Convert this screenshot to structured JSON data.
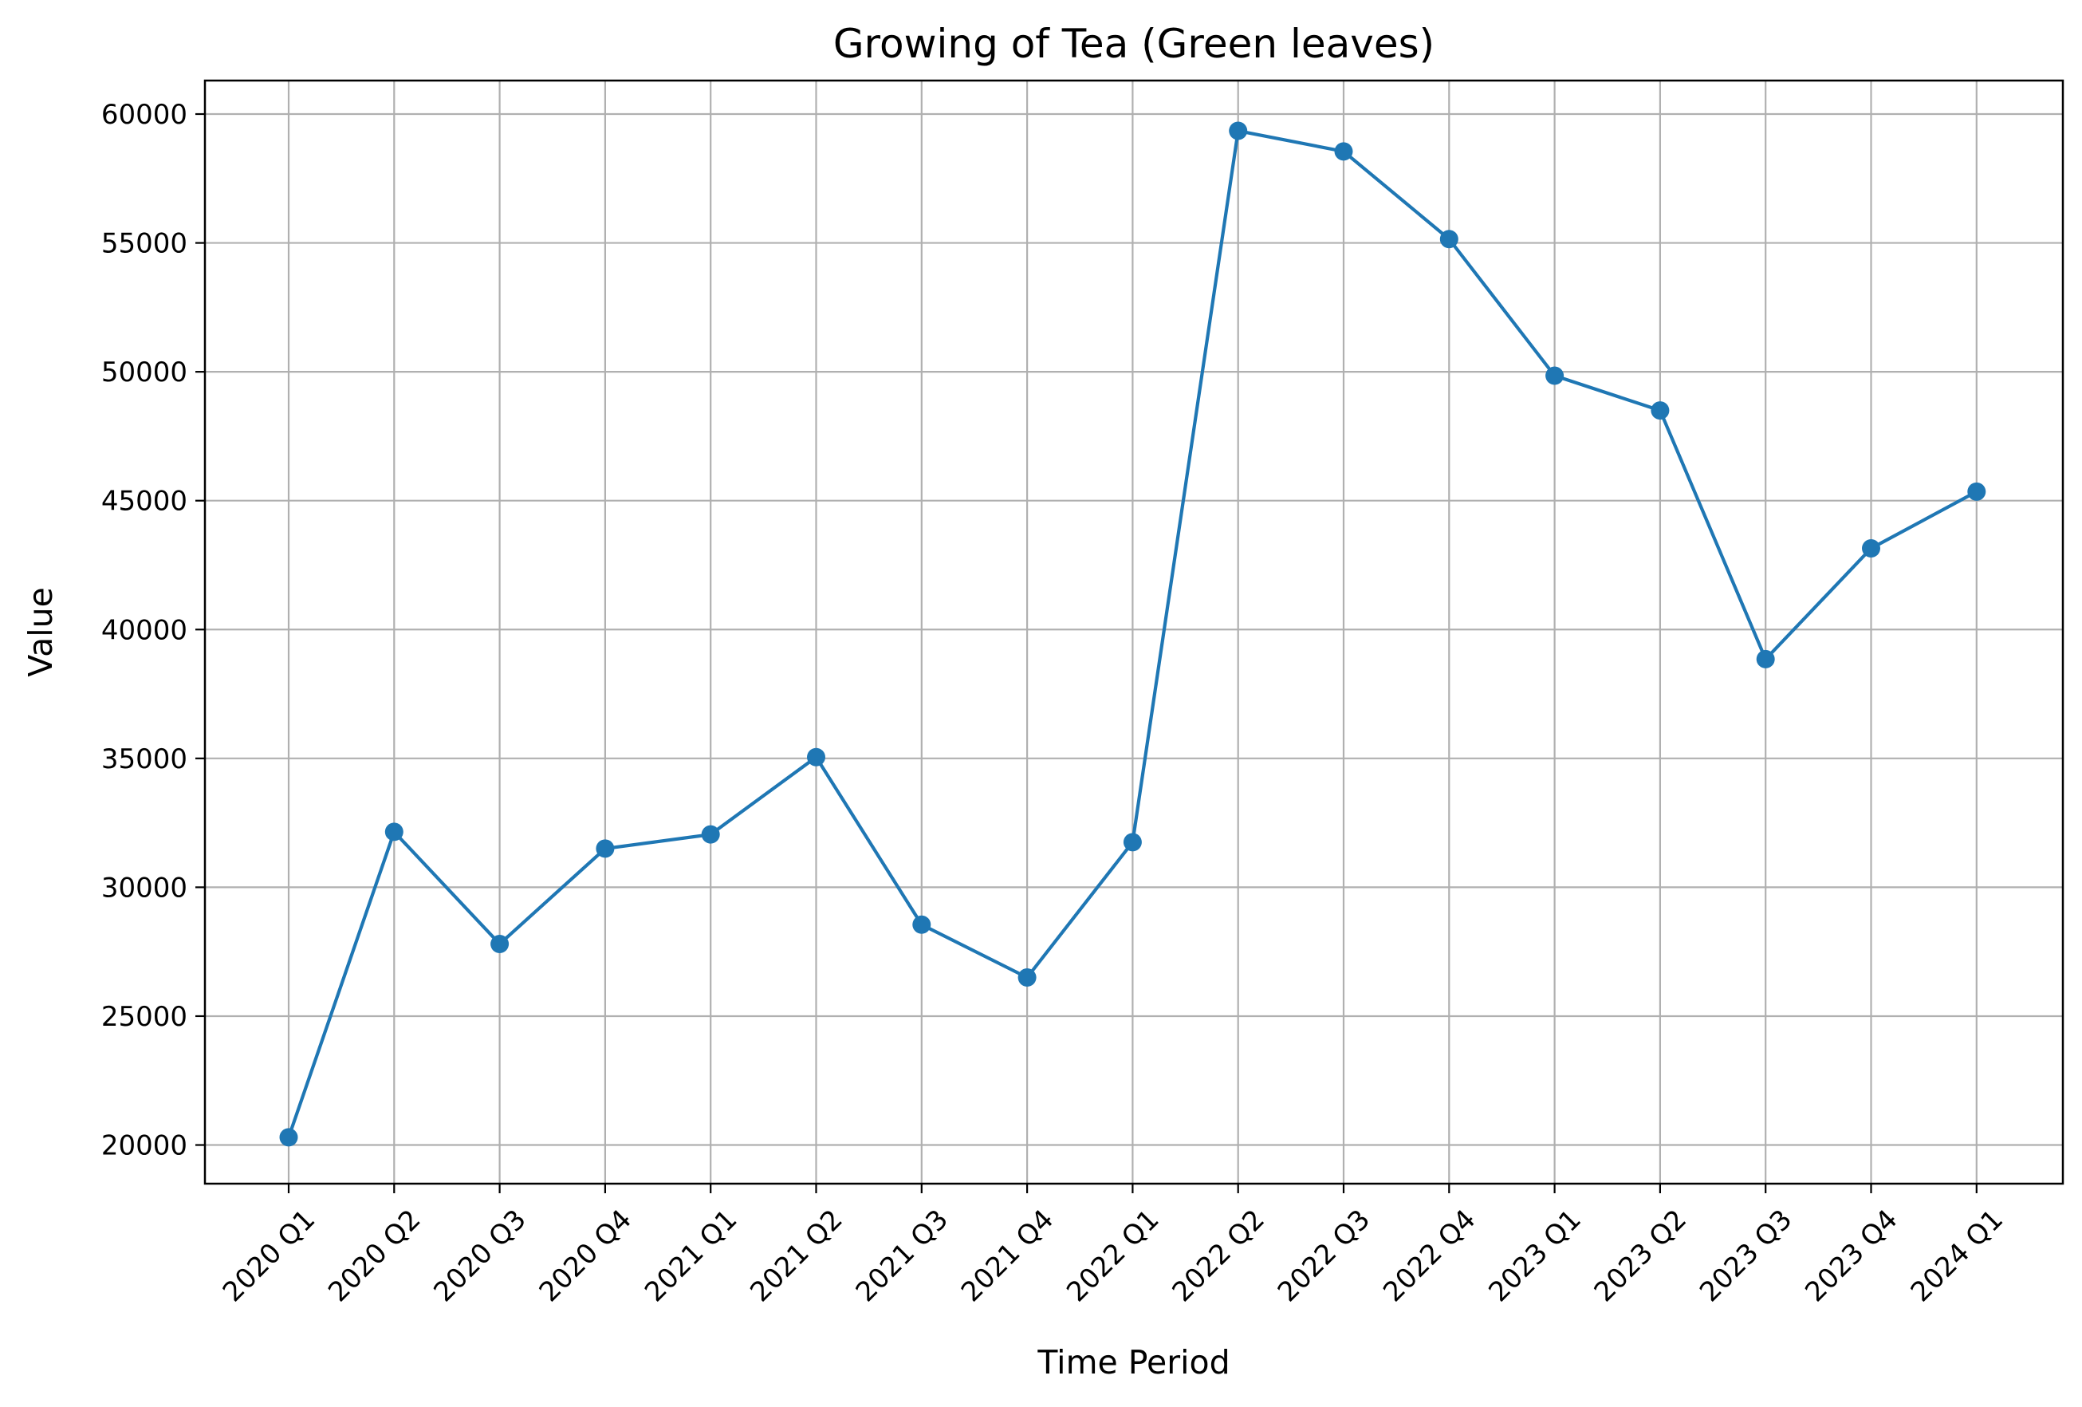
{
  "chart_data": {
    "type": "line",
    "title": "Growing of Tea (Green leaves)",
    "xlabel": "Time Period",
    "ylabel": "Value",
    "categories": [
      "2020 Q1",
      "2020 Q2",
      "2020 Q3",
      "2020 Q4",
      "2021 Q1",
      "2021 Q2",
      "2021 Q3",
      "2021 Q4",
      "2022 Q1",
      "2022 Q2",
      "2022 Q3",
      "2022 Q4",
      "2023 Q1",
      "2023 Q2",
      "2023 Q3",
      "2023 Q4",
      "2024 Q1"
    ],
    "series": [
      {
        "values": [
          20300,
          32150,
          27800,
          31500,
          32050,
          35050,
          28550,
          26500,
          31750,
          59350,
          58550,
          55150,
          49850,
          48500,
          38850,
          43150,
          45350
        ]
      }
    ],
    "yticks": [
      "20000",
      "25000",
      "30000",
      "35000",
      "40000",
      "45000",
      "50000",
      "55000",
      "60000"
    ],
    "ylim": [
      18500,
      61300
    ],
    "grid": true,
    "colors": {
      "line": "#1f77b4",
      "grid": "#b0b0b0",
      "axes": "#000000"
    }
  }
}
